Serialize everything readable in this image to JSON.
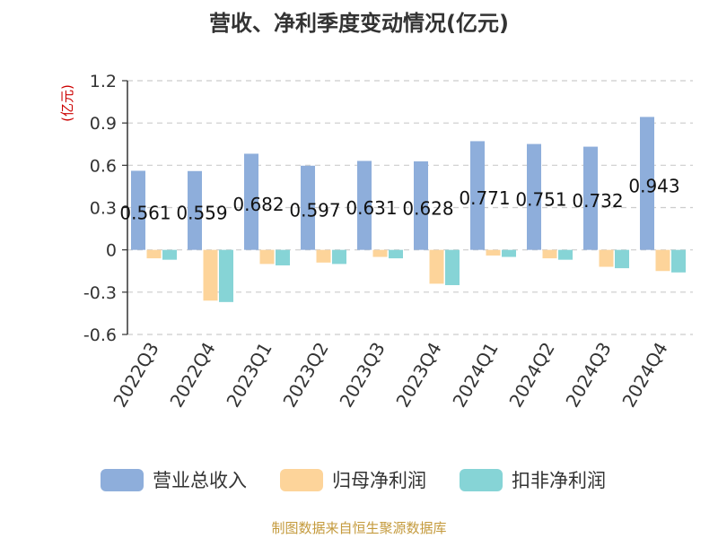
{
  "chart_data": {
    "type": "bar",
    "title": "营收、净利季度变动情况(亿元)",
    "ylabel": "(亿元)",
    "ylim": [
      -0.6,
      1.2
    ],
    "yticks": [
      "1.2",
      "0.9",
      "0.6",
      "0.3",
      "0",
      "-0.3",
      "-0.6"
    ],
    "ytick_values": [
      1.2,
      0.9,
      0.6,
      0.3,
      0,
      -0.3,
      -0.6
    ],
    "categories": [
      "2022Q3",
      "2022Q4",
      "2023Q1",
      "2023Q2",
      "2023Q3",
      "2023Q4",
      "2024Q1",
      "2024Q2",
      "2024Q3",
      "2024Q4"
    ],
    "series": [
      {
        "name": "营业总收入",
        "color": "#8eaedb",
        "values": [
          0.561,
          0.559,
          0.682,
          0.597,
          0.631,
          0.628,
          0.771,
          0.751,
          0.732,
          0.943
        ]
      },
      {
        "name": "归母净利润",
        "color": "#fdd49a",
        "values": [
          -0.06,
          -0.36,
          -0.1,
          -0.09,
          -0.05,
          -0.24,
          -0.04,
          -0.06,
          -0.12,
          -0.15
        ]
      },
      {
        "name": "扣非净利润",
        "color": "#86d4d6",
        "values": [
          -0.07,
          -0.37,
          -0.11,
          -0.1,
          -0.06,
          -0.25,
          -0.05,
          -0.07,
          -0.13,
          -0.16
        ]
      }
    ],
    "data_labels": [
      "0.561",
      "0.559",
      "0.682",
      "0.597",
      "0.631",
      "0.628",
      "0.771",
      "0.751",
      "0.732",
      "0.943"
    ],
    "grid": true,
    "legend_position": "bottom"
  },
  "footer": {
    "source": "制图数据来自恒生聚源数据库"
  }
}
